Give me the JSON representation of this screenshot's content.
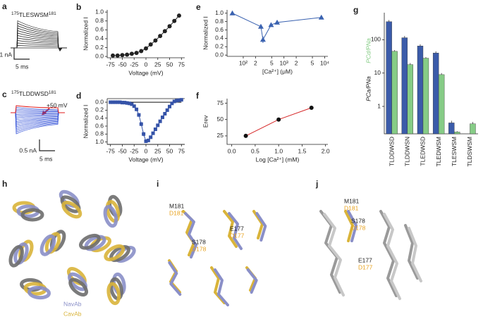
{
  "panel_a": {
    "letter": "a",
    "construct": {
      "start": "175",
      "sequence": "TLESWSM",
      "end": "181"
    },
    "scale_current": "1 nA",
    "scale_time": "5 ms"
  },
  "panel_c": {
    "letter": "c",
    "construct": {
      "start": "175",
      "sequence": "TLDDWSD",
      "end": "181"
    },
    "step": "+50 mV",
    "scale_current": "0.5 nA",
    "scale_time": "5 ms"
  },
  "panel_h": {
    "letter": "h",
    "legend": [
      {
        "name": "NavAb",
        "color": "#8a8fc8"
      },
      {
        "name": "CavAb",
        "color": "#d9b43a"
      }
    ]
  },
  "panel_i": {
    "letter": "i",
    "labels": [
      {
        "wt": "M181",
        "mut": "D181"
      },
      {
        "wt": "E177",
        "mut": "D177"
      },
      {
        "wt": "S178",
        "mut": "D178"
      }
    ]
  },
  "panel_j": {
    "letter": "j",
    "labels": [
      {
        "wt": "M181",
        "mut": "D181"
      },
      {
        "wt": "S178",
        "mut": "D178"
      },
      {
        "wt": "E177",
        "mut": "D177"
      }
    ]
  },
  "chart_data": [
    {
      "type": "line",
      "letter": "b",
      "xlabel": "Voltage (mV)",
      "ylabel": "Normalized I",
      "marker": "circle",
      "series": [
        {
          "color": "#222222",
          "x": [
            -70,
            -60,
            -50,
            -40,
            -30,
            -20,
            -10,
            0,
            10,
            20,
            30,
            40,
            50,
            60,
            70
          ],
          "values": [
            0.02,
            0.02,
            0.03,
            0.04,
            0.06,
            0.08,
            0.12,
            0.18,
            0.27,
            0.36,
            0.46,
            0.57,
            0.68,
            0.8,
            0.92
          ]
        }
      ],
      "xlim": [
        -82,
        82
      ],
      "xticks": [
        -75,
        -50,
        -25,
        0,
        25,
        50,
        75
      ],
      "ylim": [
        -0.03,
        1.05
      ],
      "yticks": [
        {
          "value": 0,
          "label": "0.0"
        },
        {
          "value": 0.2,
          "label": "0.2"
        },
        {
          "value": 0.4,
          "label": "0.4"
        },
        {
          "value": 0.6,
          "label": "0.6"
        },
        {
          "value": 0.8,
          "label": "0.8"
        },
        {
          "value": 1,
          "label": "1.0"
        }
      ]
    },
    {
      "type": "line",
      "letter": "d",
      "xlabel": "Voltage (mV)",
      "ylabel": "Normalized I",
      "inverted": true,
      "marker": "square",
      "series": [
        {
          "color": "#111111",
          "marker": "none",
          "x": [
            -75,
            75
          ],
          "values": [
            0,
            0
          ]
        },
        {
          "color": "#3553a8",
          "x": [
            -75,
            -70,
            -65,
            -60,
            -55,
            -50,
            -45,
            -40,
            -35,
            -30,
            -25,
            -20,
            -15,
            -10,
            -5,
            0,
            5,
            10,
            15,
            20,
            25,
            30,
            35,
            40,
            45,
            50,
            55,
            60,
            65,
            70,
            75
          ],
          "values": [
            0,
            0,
            0,
            0,
            0,
            0.01,
            0.01,
            0.02,
            0.03,
            0.05,
            0.1,
            0.18,
            0.32,
            0.55,
            0.8,
            0.98,
            0.96,
            0.88,
            0.78,
            0.68,
            0.58,
            0.48,
            0.38,
            0.29,
            0.2,
            0.11,
            0.03,
            -0.02,
            -0.04,
            -0.05,
            -0.06
          ],
          "errors": [
            0.01,
            0.01,
            0.01,
            0.01,
            0.01,
            0.01,
            0.01,
            0.01,
            0.01,
            0.02,
            0.02,
            0.03,
            0.04,
            0.05,
            0.05,
            0.04,
            0.04,
            0.04,
            0.04,
            0.04,
            0.04,
            0.04,
            0.03,
            0.03,
            0.03,
            0.02,
            0.02,
            0.01,
            0.01,
            0.01,
            0.01
          ]
        }
      ],
      "xlim": [
        -82,
        82
      ],
      "xticks": [
        -75,
        -50,
        -25,
        0,
        25,
        50,
        75
      ],
      "ylim": [
        -0.09,
        1.06
      ],
      "yticks": [
        {
          "value": 0,
          "label": "0.0"
        },
        {
          "value": 0.2,
          "label": "0.2"
        },
        {
          "value": 0.4,
          "label": "0.4"
        },
        {
          "value": 0.6,
          "label": "0.6"
        },
        {
          "value": 0.8,
          "label": "0.8"
        },
        {
          "value": 1,
          "label": "1.0"
        }
      ]
    },
    {
      "type": "line",
      "letter": "e",
      "xlabel": "[Ca²⁺] (μM)",
      "ylabel": "Normalized I",
      "xlog": true,
      "marker": "triangle",
      "series": [
        {
          "color": "#3a62b0",
          "x": [
            54,
            271,
            305,
            483,
            680,
            8300
          ],
          "values": [
            1.0,
            0.68,
            0.37,
            0.72,
            0.78,
            0.9
          ],
          "errors": [
            0.02,
            0.04,
            0.08,
            0.04,
            0.03,
            0.03
          ]
        }
      ],
      "xlim": [
        40,
        12000
      ],
      "xticks": [
        {
          "value": 100,
          "label": "10²"
        },
        {
          "value": 200,
          "label": "2"
        },
        {
          "value": 500,
          "label": "5"
        },
        {
          "value": 1000,
          "label": "10³"
        },
        {
          "value": 2000,
          "label": "2"
        },
        {
          "value": 5000,
          "label": "5"
        },
        {
          "value": 10000,
          "label": "10⁴"
        }
      ],
      "ylim": [
        -0.03,
        1.08
      ],
      "yticks": [
        {
          "value": 0,
          "label": "0.0"
        },
        {
          "value": 0.2,
          "label": "0.2"
        },
        {
          "value": 0.4,
          "label": "0.4"
        },
        {
          "value": 0.6,
          "label": "0.6"
        },
        {
          "value": 0.8,
          "label": "0.8"
        },
        {
          "value": 1,
          "label": "1.0"
        }
      ]
    },
    {
      "type": "line",
      "letter": "f",
      "xlabel": "Log [Ca²⁺] (mM)",
      "ylabel": "Erev",
      "marker": "circle",
      "series": [
        {
          "color": "#111111",
          "line_color": "#d62728",
          "x": [
            0.3,
            1.0,
            1.7
          ],
          "values": [
            25,
            50,
            68
          ]
        }
      ],
      "xlim": [
        -0.1,
        2.05
      ],
      "xticks": [
        {
          "value": 0,
          "label": "0.0"
        },
        {
          "value": 0.5,
          "label": "0.5"
        },
        {
          "value": 1,
          "label": "1.0"
        },
        {
          "value": 1.5,
          "label": "1.5"
        },
        {
          "value": 2,
          "label": "2.0"
        }
      ],
      "ylim": [
        12,
        82
      ],
      "yticks": [
        25,
        50,
        75
      ]
    },
    {
      "type": "bar",
      "letter": "g",
      "ylog": true,
      "categories": [
        "TLDDWSD",
        "TLDDWSN",
        "TLEDWSD",
        "TLEDWSM",
        "TLESWSM",
        "TLDSWSM"
      ],
      "series": [
        {
          "name": "PCa/PNa",
          "color": "#3b5ba9",
          "values": [
            350,
            115,
            65,
            40,
            0.32,
            null
          ],
          "errors": [
            40,
            15,
            8,
            5,
            0.05,
            null
          ]
        },
        {
          "name": "PCd/PNa",
          "color": "#86cc86",
          "values": [
            45,
            18,
            28,
            9,
            0.17,
            0.3
          ],
          "errors": [
            4,
            2,
            2,
            1,
            0.01,
            0.04
          ]
        }
      ],
      "ylim": [
        0.15,
        650
      ],
      "yticks": [
        1,
        10,
        100
      ]
    }
  ]
}
